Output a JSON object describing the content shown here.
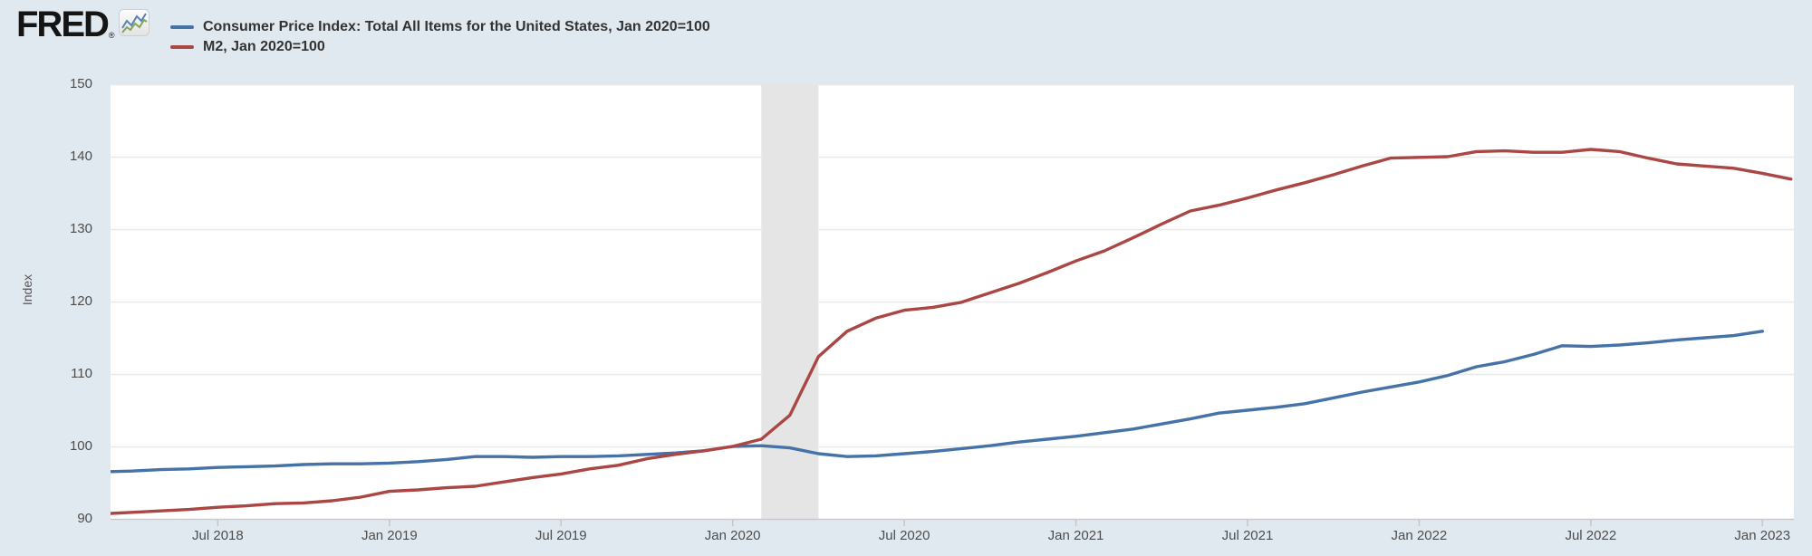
{
  "header": {
    "logo_text": "FRED",
    "registered_mark": "®",
    "logo_icon": "sparkline-chart-icon"
  },
  "legend": {
    "position": "top-left",
    "items": [
      {
        "label": "Consumer Price Index: Total All Items for the United States, Jan 2020=100",
        "color": "#4572a7"
      },
      {
        "label": "M2, Jan 2020=100",
        "color": "#aa4643"
      }
    ]
  },
  "colors": {
    "page_background": "#e1e9f0",
    "plot_background": "#ffffff",
    "gridline": "#e8e8e8",
    "axis_line": "#c9c9c9",
    "tick_mark": "#c6c6c6",
    "recession_band": "#e5e5e5",
    "tick_text": "#4d4d4d",
    "legend_text": "#333333"
  },
  "chart_data": {
    "type": "line",
    "title": "",
    "xlabel": "",
    "ylabel": "Index",
    "ylim": [
      90,
      150
    ],
    "yticks": [
      90,
      100,
      110,
      120,
      130,
      140,
      150
    ],
    "xtick_labels": [
      "Jul 2018",
      "Jan 2019",
      "Jul 2019",
      "Jan 2020",
      "Jul 2020",
      "Jan 2021",
      "Jul 2021",
      "Jan 2022",
      "Jul 2022",
      "Jan 2023"
    ],
    "frequency": "monthly",
    "x_start": "2018-03",
    "x_end": "2023-02",
    "grid": "on",
    "recession_band": {
      "start": "2020-02",
      "end": "2020-04"
    },
    "series": [
      {
        "name": "Consumer Price Index: Total All Items for the United States, Jan 2020=100",
        "color": "#4572a7",
        "first_month": "2018-03",
        "last_month": "2023-01",
        "values": [
          96.5,
          96.6,
          96.8,
          96.9,
          97.1,
          97.2,
          97.3,
          97.5,
          97.6,
          97.6,
          97.7,
          97.9,
          98.2,
          98.6,
          98.6,
          98.5,
          98.6,
          98.6,
          98.7,
          98.9,
          99.1,
          99.4,
          100.0,
          100.1,
          99.8,
          99.0,
          98.6,
          98.7,
          99.0,
          99.3,
          99.7,
          100.1,
          100.6,
          101.0,
          101.4,
          101.9,
          102.4,
          103.1,
          103.8,
          104.6,
          105.0,
          105.4,
          105.9,
          106.7,
          107.5,
          108.2,
          108.9,
          109.8,
          111.0,
          111.7,
          112.7,
          113.9,
          113.8,
          114.0,
          114.3,
          114.7,
          115.0,
          115.3,
          115.9
        ]
      },
      {
        "name": "M2, Jan 2020=100",
        "color": "#aa4643",
        "first_month": "2018-03",
        "last_month": "2023-02",
        "values": [
          90.7,
          90.9,
          91.1,
          91.3,
          91.6,
          91.8,
          92.1,
          92.2,
          92.5,
          93.0,
          93.8,
          94.0,
          94.3,
          94.5,
          95.1,
          95.7,
          96.2,
          96.9,
          97.4,
          98.3,
          98.9,
          99.4,
          100.0,
          101.0,
          104.3,
          112.4,
          115.9,
          117.7,
          118.8,
          119.2,
          119.9,
          121.2,
          122.5,
          124.0,
          125.6,
          127.0,
          128.8,
          130.7,
          132.5,
          133.3,
          134.3,
          135.4,
          136.4,
          137.5,
          138.7,
          139.8,
          139.9,
          140.0,
          140.7,
          140.8,
          140.6,
          140.6,
          141.0,
          140.7,
          139.8,
          139.0,
          138.7,
          138.4,
          137.7,
          136.9
        ]
      }
    ]
  }
}
